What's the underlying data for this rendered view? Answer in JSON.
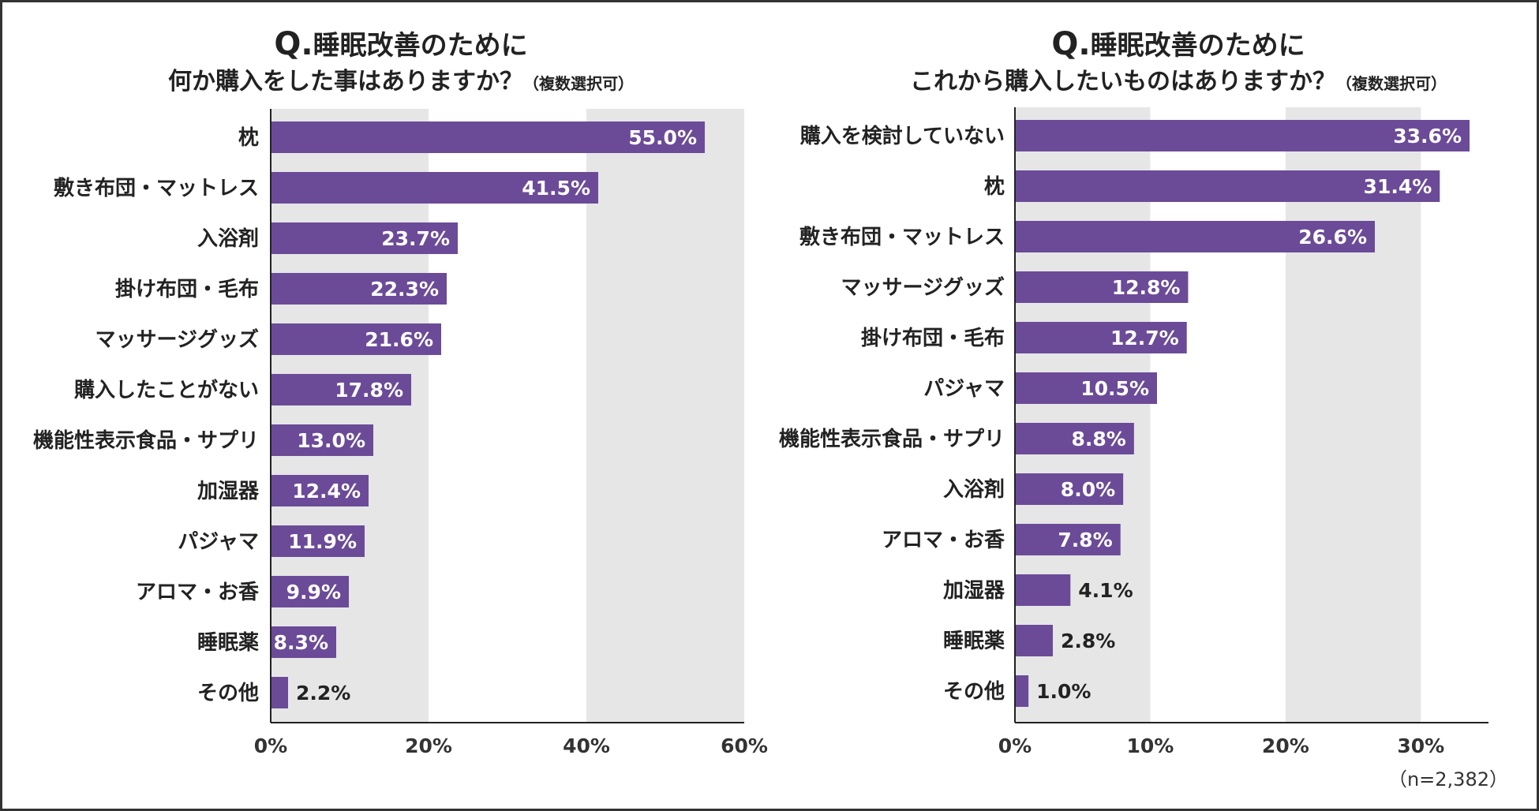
{
  "colors": {
    "bar": "#6b4b98",
    "band": "#e6e6e6",
    "axis": "#222222"
  },
  "chart_data": [
    {
      "type": "bar",
      "orientation": "horizontal",
      "title": {
        "q": "Q.",
        "line1": "睡眠改善のために",
        "line2": "何か購入をした事はありますか？",
        "note": "（複数選択可）"
      },
      "categories": [
        "枕",
        "敷き布団・マットレス",
        "入浴剤",
        "掛け布団・毛布",
        "マッサージグッズ",
        "購入したことがない",
        "機能性表示食品・サプリ",
        "加湿器",
        "パジャマ",
        "アロマ・お香",
        "睡眠薬",
        "その他"
      ],
      "values": [
        55.0,
        41.5,
        23.7,
        22.3,
        21.6,
        17.8,
        13.0,
        12.4,
        11.9,
        9.9,
        8.3,
        2.2
      ],
      "labels": [
        "55.0%",
        "41.5%",
        "23.7%",
        "22.3%",
        "21.6%",
        "17.8%",
        "13.0%",
        "12.4%",
        "11.9%",
        "9.9%",
        "8.3%",
        "2.2%"
      ],
      "xlim": [
        0,
        60
      ],
      "ticks": [
        0,
        20,
        40,
        60
      ],
      "tick_labels": [
        "0%",
        "20%",
        "40%",
        "60%"
      ],
      "unit": "%"
    },
    {
      "type": "bar",
      "orientation": "horizontal",
      "title": {
        "q": "Q.",
        "line1": "睡眠改善のために",
        "line2": "これから購入したいものはありますか？",
        "note": "（複数選択可）"
      },
      "categories": [
        "購入を検討していない",
        "枕",
        "敷き布団・マットレス",
        "マッサージグッズ",
        "掛け布団・毛布",
        "パジャマ",
        "機能性表示食品・サプリ",
        "入浴剤",
        "アロマ・お香",
        "加湿器",
        "睡眠薬",
        "その他"
      ],
      "values": [
        33.6,
        31.4,
        26.6,
        12.8,
        12.7,
        10.5,
        8.8,
        8.0,
        7.8,
        4.1,
        2.8,
        1.0
      ],
      "labels": [
        "33.6%",
        "31.4%",
        "26.6%",
        "12.8%",
        "12.7%",
        "10.5%",
        "8.8%",
        "8.0%",
        "7.8%",
        "4.1%",
        "2.8%",
        "1.0%"
      ],
      "xlim": [
        0,
        35
      ],
      "ticks": [
        0,
        10,
        20,
        30
      ],
      "tick_labels": [
        "0%",
        "10%",
        "20%",
        "30%"
      ],
      "unit": "%"
    }
  ],
  "footer": {
    "sample_size": "（n=2,382）"
  }
}
